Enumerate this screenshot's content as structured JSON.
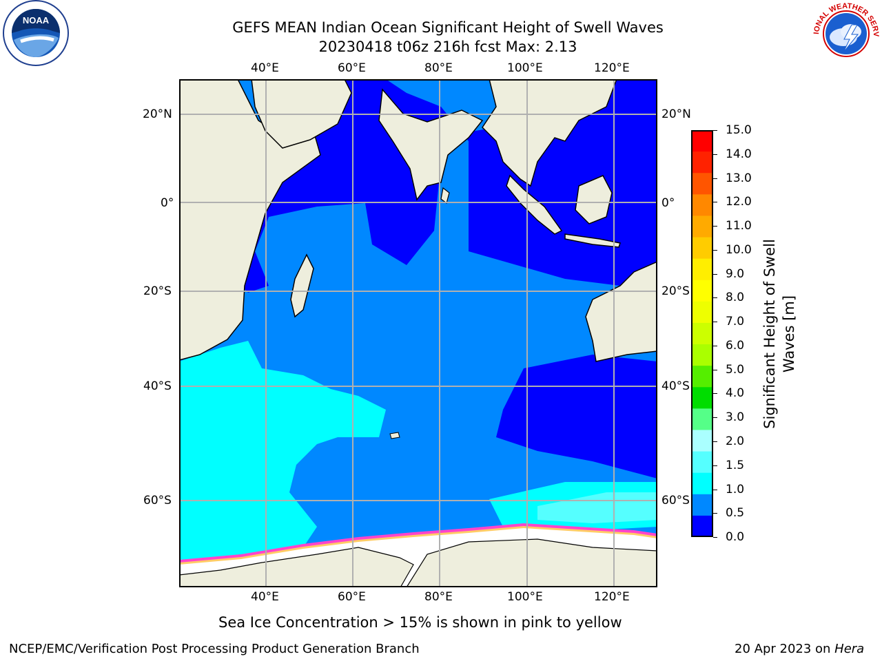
{
  "title": {
    "line1": "GEFS MEAN Indian Ocean Significant Height of Swell Waves",
    "line2": "20230418 t06z 216h fcst   Max: 2.13"
  },
  "map": {
    "lon_range": [
      20,
      130
    ],
    "lat_range": [
      -78,
      27
    ],
    "lon_labels": [
      "40°E",
      "60°E",
      "80°E",
      "100°E",
      "120°E"
    ],
    "lat_labels": [
      "20°N",
      "0°",
      "20°S",
      "40°S",
      "60°S"
    ],
    "grid": true,
    "land_color": "#eeeedd",
    "ice_color": "#ffffff"
  },
  "colorbar": {
    "label_line1": "Significant Height of Swell",
    "label_line2": "Waves [m]",
    "ticks": [
      "15.0",
      "14.0",
      "13.0",
      "12.0",
      "11.0",
      "10.0",
      "9.0",
      "8.0",
      "7.0",
      "6.0",
      "5.0",
      "4.0",
      "3.0",
      "2.0",
      "1.5",
      "1.0",
      "0.5",
      "0.0"
    ],
    "colors": [
      "#ff0000",
      "#ff2200",
      "#ff5500",
      "#ff8800",
      "#ffaa00",
      "#ffcc00",
      "#ffee00",
      "#ffff00",
      "#eeff00",
      "#ccff00",
      "#aaff00",
      "#55ee00",
      "#00dd00",
      "#55ff88",
      "#aaffff",
      "#55ffff",
      "#00ffff",
      "#0088ff",
      "#0000ff"
    ]
  },
  "ice_note": "Sea Ice Concentration > 15% is shown in pink to yellow",
  "footer": {
    "left": "NCEP/EMC/Verification Post Processing Product Generation Branch",
    "right_date": "20 Apr 2023 on ",
    "right_machine": "Hera"
  },
  "logos": {
    "noaa_text": "NOAA",
    "nws_text": "NATIONAL WEATHER SERVICE"
  }
}
